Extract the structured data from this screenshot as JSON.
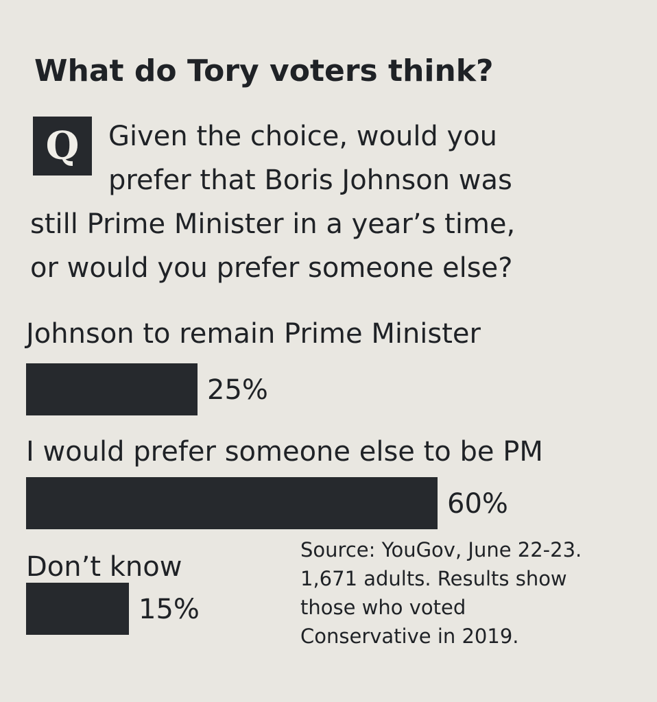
{
  "chart_data": {
    "type": "bar",
    "title": "What do Tory voters think?",
    "question_label": "Q",
    "question_lines": [
      "Given the choice, would you",
      "prefer that Boris Johnson was",
      "still Prime Minister in a year’s time,",
      "or would you prefer someone else?"
    ],
    "categories": [
      "Johnson to remain Prime Minister",
      "I would prefer someone else to be PM",
      "Don’t know"
    ],
    "values": [
      25,
      60,
      15
    ],
    "value_labels": [
      "25%",
      "60%",
      "15%"
    ],
    "color": "#26292d",
    "source_lines": [
      "Source: YouGov, June 22-23.",
      "1,671 adults. Results show",
      "those who voted",
      "Conservative in 2019."
    ]
  }
}
